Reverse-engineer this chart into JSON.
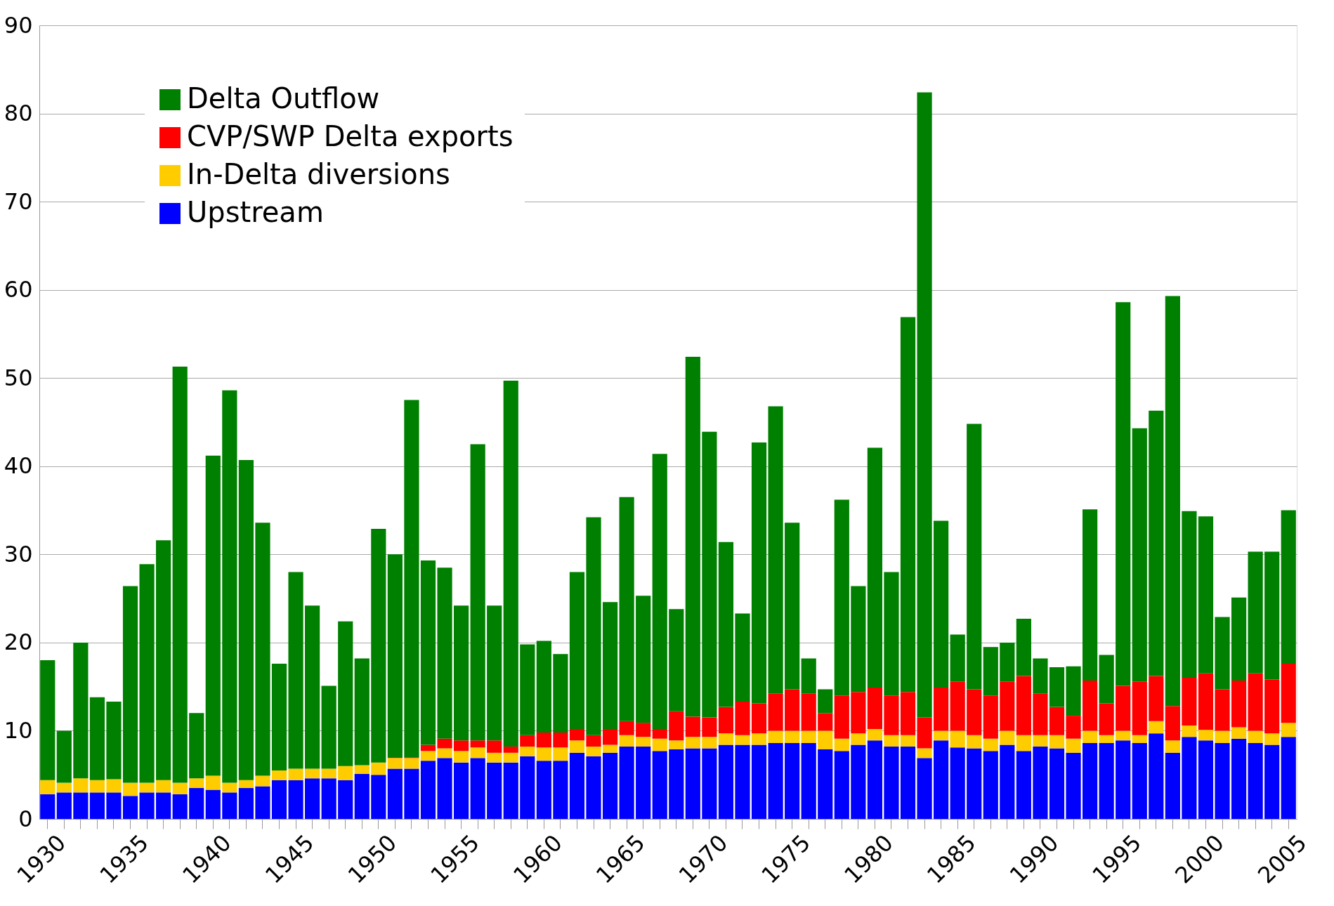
{
  "chart_data": {
    "type": "bar",
    "stacked": true,
    "categories": [
      "1930",
      null,
      null,
      null,
      null,
      "1935",
      null,
      null,
      null,
      null,
      "1940",
      null,
      null,
      null,
      null,
      "1945",
      null,
      null,
      null,
      null,
      "1950",
      null,
      null,
      null,
      null,
      "1955",
      null,
      null,
      null,
      null,
      "1960",
      null,
      null,
      null,
      null,
      "1965",
      null,
      null,
      null,
      null,
      "1970",
      null,
      null,
      null,
      null,
      "1975",
      null,
      null,
      null,
      null,
      "1980",
      null,
      null,
      null,
      null,
      "1985",
      null,
      null,
      null,
      null,
      "1990",
      null,
      null,
      null,
      null,
      "1995",
      null,
      null,
      null,
      null,
      "2000",
      null,
      null,
      null,
      null,
      "2005"
    ],
    "series": [
      {
        "name": "Upstream",
        "color": "#0000ff",
        "values": [
          2.8,
          3.0,
          3.0,
          3.0,
          3.0,
          2.6,
          3.0,
          3.0,
          2.8,
          3.5,
          3.3,
          3.0,
          3.5,
          3.7,
          4.4,
          4.4,
          4.6,
          4.6,
          4.4,
          5.1,
          5.0,
          5.7,
          5.7,
          6.6,
          6.9,
          6.4,
          6.9,
          6.4,
          6.4,
          7.1,
          6.6,
          6.6,
          7.5,
          7.1,
          7.5,
          8.2,
          8.2,
          7.7,
          7.9,
          8.0,
          8.0,
          8.4,
          8.4,
          8.4,
          8.6,
          8.6,
          8.6,
          7.9,
          7.7,
          8.4,
          8.9,
          8.2,
          8.2,
          6.9,
          8.9,
          8.1,
          8.0,
          7.7,
          8.4,
          7.7,
          8.2,
          8.0,
          7.5,
          8.6,
          8.6,
          8.9,
          8.6,
          9.7,
          7.5,
          9.3,
          8.9,
          8.6,
          9.1,
          8.6,
          8.4,
          9.3
        ]
      },
      {
        "name": "In-Delta diversions",
        "color": "#ffcc00",
        "values": [
          1.6,
          1.1,
          1.6,
          1.4,
          1.5,
          1.5,
          1.1,
          1.4,
          1.3,
          1.1,
          1.6,
          1.1,
          0.9,
          1.2,
          1.1,
          1.3,
          1.1,
          1.1,
          1.6,
          1.0,
          1.4,
          1.2,
          1.2,
          1.1,
          1.1,
          1.3,
          1.2,
          1.1,
          1.1,
          1.1,
          1.5,
          1.5,
          1.4,
          1.1,
          0.9,
          1.3,
          1.1,
          1.4,
          1.0,
          1.3,
          1.3,
          1.3,
          1.1,
          1.3,
          1.4,
          1.4,
          1.4,
          2.1,
          1.4,
          1.3,
          1.3,
          1.3,
          1.3,
          1.1,
          1.1,
          1.9,
          1.5,
          1.4,
          1.6,
          1.8,
          1.3,
          1.5,
          1.6,
          1.4,
          0.9,
          1.1,
          0.9,
          1.4,
          1.4,
          1.3,
          1.2,
          1.4,
          1.3,
          1.4,
          1.3,
          1.6
        ]
      },
      {
        "name": "CVP/SWP Delta exports",
        "color": "#ff0000",
        "values": [
          null,
          null,
          null,
          null,
          null,
          null,
          null,
          null,
          null,
          null,
          null,
          null,
          null,
          null,
          null,
          null,
          null,
          null,
          null,
          null,
          null,
          0.1,
          0.1,
          0.7,
          1.1,
          1.2,
          0.8,
          1.4,
          0.7,
          1.3,
          1.7,
          1.7,
          1.3,
          1.3,
          1.8,
          1.6,
          1.6,
          1.1,
          3.3,
          2.3,
          2.2,
          3.0,
          3.8,
          3.4,
          4.2,
          4.7,
          4.2,
          2.0,
          4.9,
          4.7,
          4.7,
          4.5,
          4.9,
          3.5,
          4.9,
          5.6,
          5.2,
          4.9,
          5.6,
          6.7,
          4.7,
          3.2,
          2.6,
          5.7,
          3.6,
          5.1,
          6.1,
          5.1,
          3.9,
          5.4,
          6.4,
          4.7,
          5.3,
          6.5,
          6.1,
          6.7
        ]
      },
      {
        "name": "Delta Outflow",
        "color": "#008000",
        "values": [
          13.6,
          5.9,
          15.4,
          9.4,
          8.8,
          22.3,
          24.8,
          27.2,
          47.2,
          7.4,
          36.3,
          44.5,
          36.3,
          28.7,
          12.1,
          22.3,
          18.5,
          9.4,
          16.4,
          12.1,
          26.5,
          23.0,
          40.5,
          20.9,
          19.4,
          15.3,
          33.6,
          15.3,
          41.5,
          10.3,
          10.4,
          8.9,
          17.8,
          24.7,
          14.4,
          25.4,
          14.4,
          31.2,
          11.6,
          40.8,
          32.4,
          18.7,
          10.0,
          29.6,
          32.6,
          18.9,
          4.0,
          2.7,
          22.2,
          12.0,
          27.2,
          14.0,
          42.5,
          70.9,
          18.9,
          5.3,
          30.1,
          5.5,
          4.4,
          6.5,
          4.0,
          4.5,
          5.6,
          19.4,
          5.5,
          43.5,
          28.7,
          30.1,
          46.5,
          18.9,
          17.8,
          8.2,
          9.4,
          13.8,
          14.5,
          17.4
        ]
      }
    ],
    "ylim": [
      0,
      90
    ],
    "yticks": [
      0,
      10,
      20,
      30,
      40,
      50,
      60,
      70,
      80,
      90
    ],
    "grid": "y",
    "legend": "top left"
  }
}
